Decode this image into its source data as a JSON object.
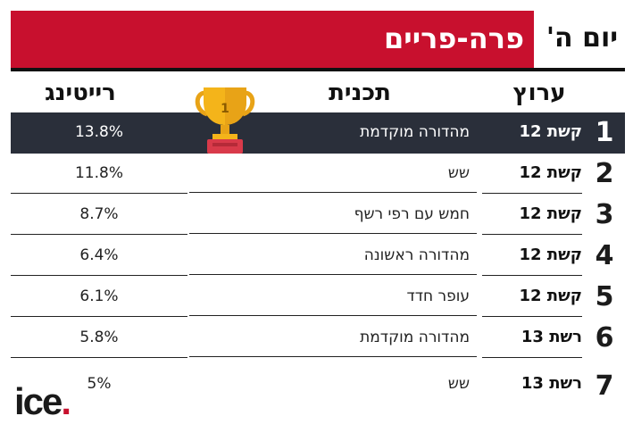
{
  "header": {
    "title": "פרה-פריים",
    "day": "יום ה'"
  },
  "columns": {
    "channel": "ערוץ",
    "program": "תכנית",
    "rating": "רייטינג"
  },
  "trophy": {
    "label": "1",
    "icon": "trophy-icon"
  },
  "rows": [
    {
      "rank": "1",
      "channel": "קשת 12",
      "program": "מהדורה מוקדמת",
      "rating": "13.8%"
    },
    {
      "rank": "2",
      "channel": "קשת 12",
      "program": "שש",
      "rating": "11.8%"
    },
    {
      "rank": "3",
      "channel": "קשת 12",
      "program": "חמש עם רפי רשף",
      "rating": "8.7%"
    },
    {
      "rank": "4",
      "channel": "קשת 12",
      "program": "מהדורה ראשונה",
      "rating": "6.4%"
    },
    {
      "rank": "5",
      "channel": "קשת 12",
      "program": "עופר חדד",
      "rating": "6.1%"
    },
    {
      "rank": "6",
      "channel": "רשת 13",
      "program": "מהדורה מוקדמת",
      "rating": "5.8%"
    },
    {
      "rank": "7",
      "channel": "רשת 13",
      "program": "שש",
      "rating": "5%"
    }
  ],
  "logo": {
    "text": "ice",
    "dot": "."
  },
  "colors": {
    "accent": "#c8102e",
    "highlight_row": "#2a2f3a"
  }
}
